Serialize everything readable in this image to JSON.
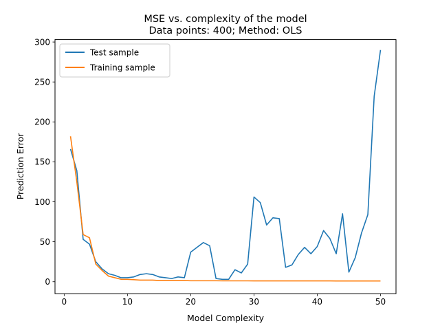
{
  "chart_data": {
    "type": "line",
    "title_line1": "MSE vs. complexity of the model",
    "title_line2": "Data points: 400; Method: OLS",
    "xlabel": "Model Complexity",
    "ylabel": "Prediction Error",
    "xlim": [
      -1.45,
      52.45
    ],
    "ylim": [
      -15,
      303
    ],
    "xticks": [
      0,
      10,
      20,
      30,
      40,
      50
    ],
    "yticks": [
      0,
      50,
      100,
      150,
      200,
      250,
      300
    ],
    "grid": false,
    "legend_position": "upper-left",
    "x": [
      1,
      2,
      3,
      4,
      5,
      6,
      7,
      8,
      9,
      10,
      11,
      12,
      13,
      14,
      15,
      16,
      17,
      18,
      19,
      20,
      21,
      22,
      23,
      24,
      25,
      26,
      27,
      28,
      29,
      30,
      31,
      32,
      33,
      34,
      35,
      36,
      37,
      38,
      39,
      40,
      41,
      42,
      43,
      44,
      45,
      46,
      47,
      48,
      49,
      50
    ],
    "series": [
      {
        "name": "Test sample",
        "color": "#1f77b4",
        "values": [
          166,
          139,
          53,
          47,
          25,
          16,
          10,
          8,
          5,
          5,
          6,
          9,
          10,
          9,
          6,
          5,
          4,
          6,
          5,
          37,
          43,
          49,
          45,
          4,
          3,
          3,
          15,
          11,
          22,
          106,
          99,
          71,
          80,
          79,
          18,
          21,
          34,
          43,
          35,
          44,
          64,
          54,
          35,
          85,
          12,
          30,
          61,
          84,
          232,
          290
        ]
      },
      {
        "name": "Training sample",
        "color": "#ff7f0e",
        "values": [
          182,
          125,
          59,
          55,
          22,
          14,
          7,
          5,
          3,
          3,
          2.5,
          2,
          2,
          2,
          1.5,
          1.5,
          1.5,
          1.5,
          1.5,
          1.2,
          1.2,
          1.2,
          1.2,
          1.2,
          1.1,
          1.1,
          1.1,
          1.1,
          1.1,
          1,
          1,
          1,
          1,
          1,
          1,
          1,
          1,
          1,
          1,
          1,
          1,
          1,
          0.9,
          0.9,
          0.9,
          0.9,
          0.9,
          0.9,
          0.9,
          0.9
        ]
      }
    ]
  }
}
